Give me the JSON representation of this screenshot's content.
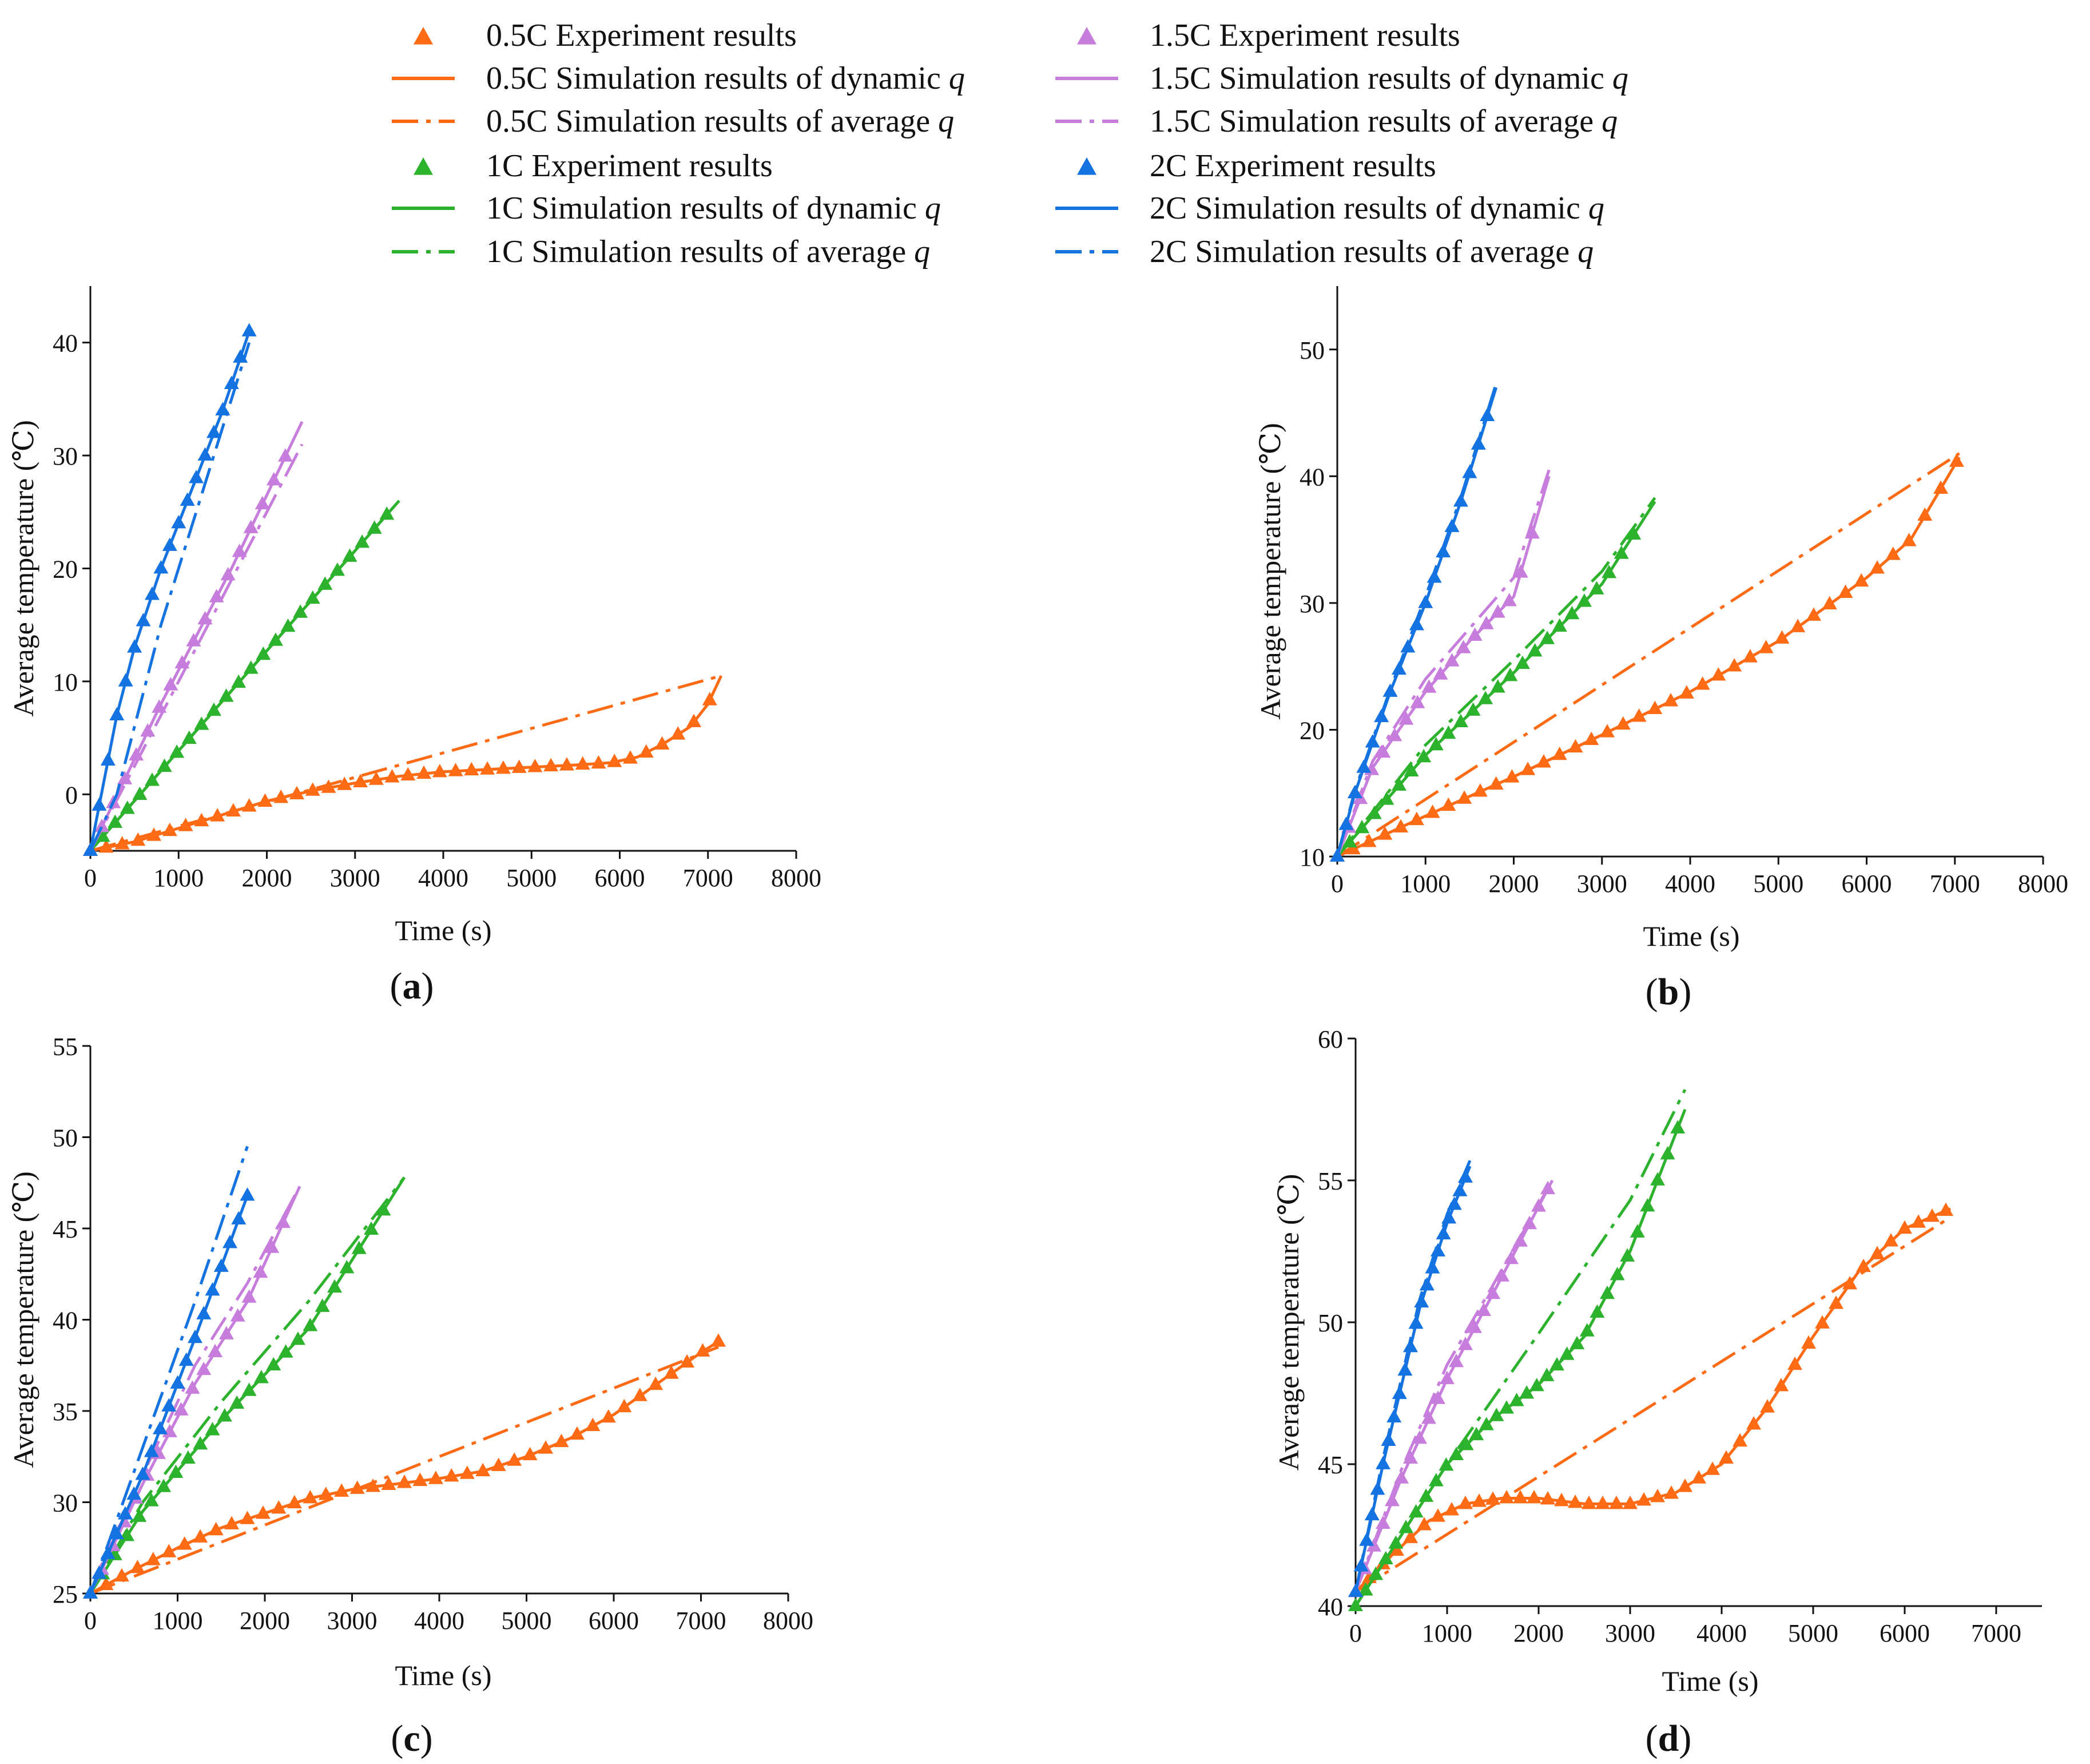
{
  "legend": [
    {
      "series": "0.5C",
      "label": "0.5C Experiment results",
      "kind": "marker",
      "color": "#FF6A14"
    },
    {
      "series": "0.5C",
      "label": "0.5C Simulation results of dynamic",
      "q": "q",
      "kind": "solid",
      "color": "#FF6A14"
    },
    {
      "series": "0.5C",
      "label": "0.5C Simulation results of average",
      "q": "q",
      "kind": "dashdot",
      "color": "#FF6A14"
    },
    {
      "series": "1C",
      "label": "1C Experiment results",
      "kind": "marker",
      "color": "#2DB22D"
    },
    {
      "series": "1C",
      "label": "1C Simulation results of dynamic",
      "q": "q",
      "kind": "solid",
      "color": "#2DB22D"
    },
    {
      "series": "1C",
      "label": "1C Simulation results of average",
      "q": "q",
      "kind": "dashdot",
      "color": "#2DB22D"
    },
    {
      "series": "1.5C",
      "label": "1.5C Experiment results",
      "kind": "marker",
      "color": "#C77DDB"
    },
    {
      "series": "1.5C",
      "label": "1.5C Simulation results of dynamic",
      "q": "q",
      "kind": "solid",
      "color": "#C77DDB"
    },
    {
      "series": "1.5C",
      "label": "1.5C Simulation results of average",
      "q": "q",
      "kind": "dashdot",
      "color": "#C77DDB"
    },
    {
      "series": "2C",
      "label": "2C Experiment results",
      "kind": "marker",
      "color": "#1473E0"
    },
    {
      "series": "2C",
      "label": "2C Simulation results of dynamic",
      "q": "q",
      "kind": "solid",
      "color": "#1473E0"
    },
    {
      "series": "2C",
      "label": "2C Simulation results of average",
      "q": "q",
      "kind": "dashdot",
      "color": "#1473E0"
    }
  ],
  "chart_data": [
    {
      "id": "a",
      "panel_label": "a",
      "type": "line",
      "xlabel": "Time (s)",
      "ylabel": "Average temperature (℃)",
      "xlim": [
        0,
        8000
      ],
      "ylim": [
        -5,
        45
      ],
      "xticks": [
        0,
        1000,
        2000,
        3000,
        4000,
        5000,
        6000,
        7000,
        8000
      ],
      "yticks": [
        0,
        10,
        20,
        30,
        40
      ],
      "series": [
        {
          "rate": "0.5C",
          "color": "#FF6A14",
          "dynamic": [
            [
              0,
              -5
            ],
            [
              500,
              -4.2
            ],
            [
              1000,
              -3
            ],
            [
              1500,
              -1.8
            ],
            [
              2000,
              -0.6
            ],
            [
              2500,
              0.3
            ],
            [
              3000,
              1
            ],
            [
              3500,
              1.6
            ],
            [
              4000,
              2
            ],
            [
              4500,
              2.2
            ],
            [
              5000,
              2.4
            ],
            [
              5500,
              2.6
            ],
            [
              5900,
              2.8
            ],
            [
              6200,
              3.3
            ],
            [
              6500,
              4.5
            ],
            [
              6800,
              6
            ],
            [
              7000,
              8
            ],
            [
              7150,
              10.5
            ]
          ],
          "average": [
            [
              0,
              -5
            ],
            [
              7150,
              10.5
            ]
          ],
          "experiment": {
            "x_step": 180,
            "x_max": 7100
          }
        },
        {
          "rate": "1C",
          "color": "#2DB22D",
          "dynamic": [
            [
              0,
              -5
            ],
            [
              3500,
              26
            ]
          ],
          "average": [
            [
              0,
              -5
            ],
            [
              3500,
              26
            ]
          ],
          "experiment": {
            "x_step": 140,
            "x_max": 3450
          }
        },
        {
          "rate": "1.5C",
          "color": "#C77DDB",
          "dynamic": [
            [
              0,
              -5
            ],
            [
              800,
              8
            ],
            [
              1600,
              20
            ],
            [
              2400,
              33
            ]
          ],
          "average": [
            [
              0,
              -5
            ],
            [
              2400,
              31
            ]
          ],
          "experiment": {
            "x_step": 130,
            "x_max": 2330
          }
        },
        {
          "rate": "2C",
          "color": "#1473E0",
          "dynamic": [
            [
              0,
              -5
            ],
            [
              150,
              1
            ],
            [
              300,
              7
            ],
            [
              500,
              13
            ],
            [
              800,
              20
            ],
            [
              1200,
              28
            ],
            [
              1500,
              34
            ],
            [
              1800,
              41
            ]
          ],
          "average": [
            [
              0,
              -5
            ],
            [
              300,
              0
            ],
            [
              800,
              15
            ],
            [
              1400,
              30
            ],
            [
              1800,
              40
            ]
          ],
          "experiment": {
            "x_step": 100,
            "x_max": 1800
          }
        }
      ]
    },
    {
      "id": "b",
      "panel_label": "b",
      "type": "line",
      "xlabel": "Time (s)",
      "ylabel": "Average temperature (℃)",
      "xlim": [
        0,
        8000
      ],
      "ylim": [
        10,
        55
      ],
      "xticks": [
        0,
        1000,
        2000,
        3000,
        4000,
        5000,
        6000,
        7000,
        8000
      ],
      "yticks": [
        10,
        20,
        30,
        40,
        50
      ],
      "series": [
        {
          "rate": "0.5C",
          "color": "#FF6A14",
          "dynamic": [
            [
              0,
              10
            ],
            [
              1000,
              13.2
            ],
            [
              2000,
              16.3
            ],
            [
              3000,
              19.6
            ],
            [
              4000,
              23
            ],
            [
              5000,
              27
            ],
            [
              6000,
              32
            ],
            [
              6500,
              35
            ],
            [
              7050,
              41.5
            ]
          ],
          "average": [
            [
              0,
              10
            ],
            [
              7050,
              41.8
            ]
          ],
          "experiment": {
            "x_step": 180,
            "x_max": 7050
          }
        },
        {
          "rate": "1C",
          "color": "#2DB22D",
          "dynamic": [
            [
              0,
              10
            ],
            [
              1000,
              18
            ],
            [
              2000,
              24.5
            ],
            [
              3000,
              31.5
            ],
            [
              3600,
              38
            ]
          ],
          "average": [
            [
              0,
              10
            ],
            [
              1000,
              18.8
            ],
            [
              2000,
              25.5
            ],
            [
              3000,
              32.5
            ],
            [
              3600,
              38.3
            ]
          ],
          "experiment": {
            "x_step": 140,
            "x_max": 3450
          }
        },
        {
          "rate": "1.5C",
          "color": "#C77DDB",
          "dynamic": [
            [
              0,
              10
            ],
            [
              400,
              17
            ],
            [
              1000,
              23
            ],
            [
              1500,
              27
            ],
            [
              2000,
              30.5
            ],
            [
              2400,
              40
            ]
          ],
          "average": [
            [
              0,
              10
            ],
            [
              400,
              17.5
            ],
            [
              1000,
              24
            ],
            [
              1500,
              28
            ],
            [
              2000,
              32
            ],
            [
              2400,
              40.5
            ]
          ],
          "experiment": {
            "x_step": 130,
            "x_max": 2330
          }
        },
        {
          "rate": "2C",
          "color": "#1473E0",
          "dynamic": [
            [
              0,
              10
            ],
            [
              200,
              15
            ],
            [
              600,
              23
            ],
            [
              1000,
              30
            ],
            [
              1400,
              38
            ],
            [
              1800,
              47
            ]
          ],
          "average": [
            [
              0,
              10
            ],
            [
              200,
              15.2
            ],
            [
              600,
              23.2
            ],
            [
              1000,
              30.5
            ],
            [
              1400,
              38.3
            ],
            [
              1800,
              47.3
            ]
          ],
          "experiment": {
            "x_step": 100,
            "x_max": 1750
          }
        }
      ]
    },
    {
      "id": "c",
      "panel_label": "c",
      "type": "line",
      "xlabel": "Time (s)",
      "ylabel": "Average temperature (℃)",
      "xlim": [
        0,
        8000
      ],
      "ylim": [
        25,
        55
      ],
      "xticks": [
        0,
        1000,
        2000,
        3000,
        4000,
        5000,
        6000,
        7000,
        8000
      ],
      "yticks": [
        25,
        30,
        35,
        40,
        45,
        50,
        55
      ],
      "series": [
        {
          "rate": "0.5C",
          "color": "#FF6A14",
          "dynamic": [
            [
              0,
              25
            ],
            [
              500,
              26.3
            ],
            [
              1000,
              27.5
            ],
            [
              1500,
              28.6
            ],
            [
              2000,
              29.4
            ],
            [
              2500,
              30.2
            ],
            [
              3000,
              30.7
            ],
            [
              3500,
              31
            ],
            [
              4000,
              31.3
            ],
            [
              4500,
              31.7
            ],
            [
              5000,
              32.5
            ],
            [
              5500,
              33.5
            ],
            [
              6000,
              34.8
            ],
            [
              6500,
              36.5
            ],
            [
              7000,
              38.2
            ],
            [
              7200,
              38.8
            ]
          ],
          "average": [
            [
              0,
              25
            ],
            [
              7200,
              38.5
            ]
          ],
          "experiment": {
            "x_step": 180,
            "x_max": 7200
          }
        },
        {
          "rate": "1C",
          "color": "#2DB22D",
          "dynamic": [
            [
              0,
              25
            ],
            [
              600,
              29.5
            ],
            [
              1500,
              34.5
            ],
            [
              2500,
              39.5
            ],
            [
              3600,
              47.8
            ]
          ],
          "average": [
            [
              0,
              25
            ],
            [
              600,
              30
            ],
            [
              1500,
              35.5
            ],
            [
              2500,
              41
            ],
            [
              3600,
              47.8
            ]
          ],
          "experiment": {
            "x_step": 140,
            "x_max": 3450
          }
        },
        {
          "rate": "1.5C",
          "color": "#C77DDB",
          "dynamic": [
            [
              0,
              25
            ],
            [
              600,
              31
            ],
            [
              1200,
              36.5
            ],
            [
              1800,
              41
            ],
            [
              2400,
              47.3
            ]
          ],
          "average": [
            [
              0,
              25
            ],
            [
              600,
              31.5
            ],
            [
              1200,
              37.5
            ],
            [
              1800,
              42
            ],
            [
              2400,
              47.3
            ]
          ],
          "experiment": {
            "x_step": 130,
            "x_max": 2250
          }
        },
        {
          "rate": "2C",
          "color": "#1473E0",
          "dynamic": [
            [
              0,
              25
            ],
            [
              600,
              31.5
            ],
            [
              1200,
              39
            ],
            [
              1800,
              46.8
            ]
          ],
          "average": [
            [
              0,
              25
            ],
            [
              600,
              33
            ],
            [
              1200,
              41
            ],
            [
              1800,
              49.5
            ]
          ],
          "experiment": {
            "x_step": 100,
            "x_max": 1800
          }
        }
      ]
    },
    {
      "id": "d",
      "panel_label": "d",
      "type": "line",
      "xlabel": "Time (s)",
      "ylabel": "Average temperature (℃)",
      "xlim": [
        0,
        7500
      ],
      "ylim": [
        40,
        60
      ],
      "xticks": [
        0,
        1000,
        2000,
        3000,
        4000,
        5000,
        6000,
        7000
      ],
      "yticks": [
        40,
        45,
        50,
        55,
        60
      ],
      "series": [
        {
          "rate": "0.5C",
          "color": "#FF6A14",
          "dynamic": [
            [
              0,
              40.5
            ],
            [
              400,
              41.8
            ],
            [
              800,
              43
            ],
            [
              1200,
              43.6
            ],
            [
              1600,
              43.8
            ],
            [
              2000,
              43.8
            ],
            [
              2500,
              43.6
            ],
            [
              3000,
              43.6
            ],
            [
              3500,
              44
            ],
            [
              4000,
              45
            ],
            [
              4500,
              47
            ],
            [
              5000,
              49.5
            ],
            [
              5500,
              51.8
            ],
            [
              6000,
              53.3
            ],
            [
              6500,
              54
            ]
          ],
          "average": [
            [
              0,
              40.5
            ],
            [
              6500,
              53.7
            ]
          ],
          "experiment": {
            "x_step": 150,
            "x_max": 6500
          }
        },
        {
          "rate": "1C",
          "color": "#2DB22D",
          "dynamic": [
            [
              0,
              40
            ],
            [
              500,
              42.5
            ],
            [
              1000,
              45
            ],
            [
              1500,
              46.6
            ],
            [
              2000,
              47.8
            ],
            [
              2500,
              49.5
            ],
            [
              3000,
              52.5
            ],
            [
              3300,
              55
            ],
            [
              3600,
              57.5
            ]
          ],
          "average": [
            [
              0,
              40
            ],
            [
              1000,
              45
            ],
            [
              2000,
              49.6
            ],
            [
              3000,
              54.3
            ],
            [
              3600,
              58.2
            ]
          ],
          "experiment": {
            "x_step": 110,
            "x_max": 3550
          }
        },
        {
          "rate": "1.5C",
          "color": "#C77DDB",
          "dynamic": [
            [
              0,
              40.5
            ],
            [
              500,
              44.5
            ],
            [
              1000,
              48
            ],
            [
              1500,
              51
            ],
            [
              2150,
              55
            ]
          ],
          "average": [
            [
              0,
              40.5
            ],
            [
              500,
              44.8
            ],
            [
              1000,
              48.5
            ],
            [
              1500,
              51.3
            ],
            [
              2150,
              55
            ]
          ],
          "experiment": {
            "x_step": 100,
            "x_max": 2100
          }
        },
        {
          "rate": "2C",
          "color": "#1473E0",
          "dynamic": [
            [
              0,
              40.5
            ],
            [
              300,
              45
            ],
            [
              700,
              50.5
            ],
            [
              1000,
              53.5
            ],
            [
              1250,
              55.5
            ]
          ],
          "average": [
            [
              0,
              40.5
            ],
            [
              300,
              45.2
            ],
            [
              700,
              50.8
            ],
            [
              1000,
              53.8
            ],
            [
              1250,
              55.7
            ]
          ],
          "experiment": {
            "x_step": 60,
            "x_max": 1220
          }
        }
      ]
    }
  ]
}
